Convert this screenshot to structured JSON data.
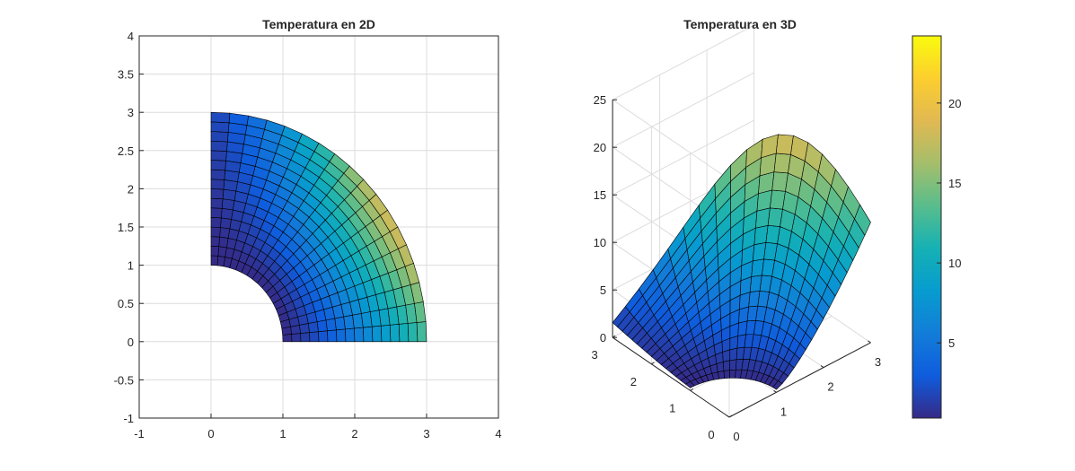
{
  "colors": {
    "background": "#ffffff",
    "grid": "#dcdcdc",
    "axis": "#262626",
    "edge": "#000000",
    "colormap": "parula"
  },
  "chart_data": [
    {
      "id": "temp2d",
      "type": "heatmap",
      "title": "Temperatura en 2D",
      "xlabel": "",
      "ylabel": "",
      "xlim": [
        -1,
        4
      ],
      "ylim": [
        -1,
        4
      ],
      "xticks": [
        "-1",
        "0",
        "1",
        "2",
        "3",
        "4"
      ],
      "yticks": [
        "-1",
        "-0.5",
        "0",
        "0.5",
        "1",
        "1.5",
        "2",
        "2.5",
        "3",
        "3.5",
        "4"
      ],
      "grid": true,
      "mesh": {
        "shape": "quarter-annulus",
        "r_inner": 1,
        "r_outer": 3,
        "theta_range_deg": [
          0,
          90
        ],
        "radial_divisions": 16,
        "angular_divisions": 18
      },
      "temperature_range": [
        0.3,
        24.2
      ],
      "peak": {
        "r": 3,
        "theta_deg": 35,
        "value": 24.2
      }
    },
    {
      "id": "temp3d",
      "type": "surface3d",
      "title": "Temperatura en 3D",
      "xlim": [
        0,
        3
      ],
      "ylim": [
        0,
        3
      ],
      "zlim": [
        0,
        25
      ],
      "xticks": [
        "0",
        "1",
        "2",
        "3"
      ],
      "yticks": [
        "0",
        "1",
        "2",
        "3"
      ],
      "zticks": [
        "0",
        "5",
        "10",
        "15",
        "20",
        "25"
      ],
      "grid": true,
      "temperature_range": [
        0.3,
        24.2
      ]
    }
  ],
  "colorbar": {
    "ticks": [
      "5",
      "10",
      "15",
      "20"
    ],
    "tick_values": [
      5,
      10,
      15,
      20
    ],
    "range": [
      0.3,
      24.2
    ]
  }
}
